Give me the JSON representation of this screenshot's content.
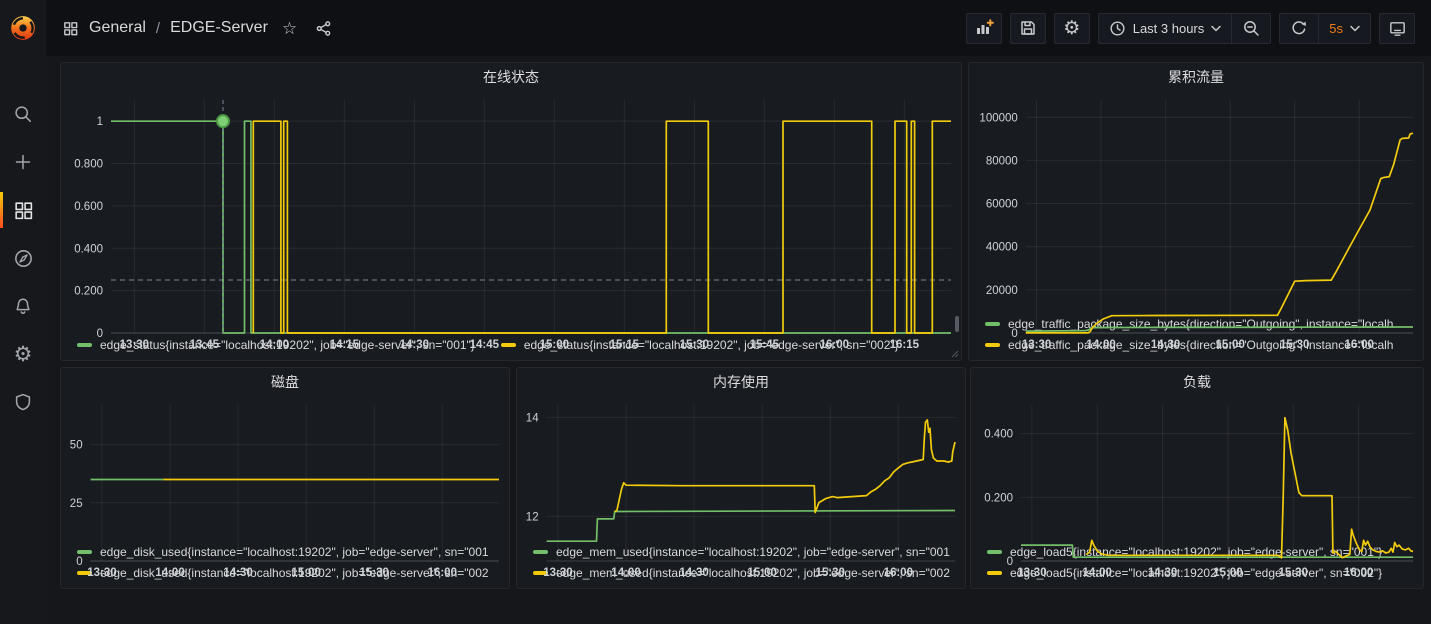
{
  "breadcrumb": {
    "section": "General",
    "separator": "/",
    "title": "EDGE-Server"
  },
  "toolbar": {
    "time_range": "Last 3 hours",
    "refresh_interval": "5s"
  },
  "icons": {
    "gear": "⚙",
    "star": "☆"
  },
  "colors": {
    "green": "#73bf69",
    "yellow": "#f2cc0c",
    "accent_orange": "#ff7e27",
    "crosshair": "#7b8699"
  },
  "sidebar": {
    "items": [
      "search",
      "create",
      "dashboards",
      "explore",
      "alerting",
      "configuration",
      "server-admin"
    ],
    "active_item": "dashboards"
  },
  "chart_data": [
    {
      "title": "在线状态",
      "type": "step-line",
      "x_unit": "minutes since 13:25",
      "x_domain": [
        0,
        180
      ],
      "x_ticks": [
        [
          5,
          "13:30"
        ],
        [
          20,
          "13:45"
        ],
        [
          35,
          "14:00"
        ],
        [
          50,
          "14:15"
        ],
        [
          65,
          "14:30"
        ],
        [
          80,
          "14:45"
        ],
        [
          95,
          "15:00"
        ],
        [
          110,
          "15:15"
        ],
        [
          125,
          "15:30"
        ],
        [
          140,
          "15:45"
        ],
        [
          155,
          "16:00"
        ],
        [
          170,
          "16:15"
        ]
      ],
      "y_domain": [
        0,
        1.1
      ],
      "y_ticks": [
        [
          0,
          "0"
        ],
        [
          0.2,
          "0.200"
        ],
        [
          0.4,
          "0.400"
        ],
        [
          0.6,
          "0.600"
        ],
        [
          0.8,
          "0.800"
        ],
        [
          1,
          "1"
        ]
      ],
      "threshold": 0.25,
      "annotation": {
        "t": 24,
        "v": 1
      },
      "legend_layout": "row",
      "series": [
        {
          "name": "edge_status{instance=\"localhost:19202\", job=\"edge-server\", sn=\"001\"}",
          "color": "#73bf69",
          "points": [
            [
              0,
              1
            ],
            [
              24,
              1
            ],
            [
              24,
              0
            ],
            [
              28.6,
              0
            ],
            [
              28.6,
              1
            ],
            [
              30,
              1
            ],
            [
              30,
              0
            ],
            [
              180,
              0
            ]
          ]
        },
        {
          "name": "edge_status{instance=\"localhost:19202\", job=\"edge-server\", sn=\"002\"}",
          "color": "#f2cc0c",
          "points": [
            [
              30.5,
              0
            ],
            [
              30.5,
              1
            ],
            [
              36.4,
              1
            ],
            [
              36.4,
              0
            ],
            [
              37,
              0
            ],
            [
              37,
              1
            ],
            [
              37.8,
              1
            ],
            [
              37.8,
              0
            ],
            [
              119,
              0
            ],
            [
              119,
              1
            ],
            [
              128,
              1
            ],
            [
              128,
              0
            ],
            [
              144,
              0
            ],
            [
              144,
              1
            ],
            [
              163,
              1
            ],
            [
              163,
              0
            ],
            [
              168,
              0
            ],
            [
              168,
              1
            ],
            [
              170.5,
              1
            ],
            [
              170.5,
              0
            ],
            [
              171.5,
              0
            ],
            [
              171.5,
              1
            ],
            [
              172.2,
              1
            ],
            [
              172.2,
              0
            ],
            [
              176,
              0
            ],
            [
              176,
              1
            ],
            [
              180,
              1
            ]
          ]
        }
      ]
    },
    {
      "title": "累积流量",
      "type": "line",
      "x_unit": "minutes since 13:25",
      "x_domain": [
        0,
        180
      ],
      "x_ticks": [
        [
          5,
          "13:30"
        ],
        [
          35,
          "14:00"
        ],
        [
          65,
          "14:30"
        ],
        [
          95,
          "15:00"
        ],
        [
          125,
          "15:30"
        ],
        [
          155,
          "16:00"
        ]
      ],
      "y_domain": [
        0,
        108000
      ],
      "y_ticks": [
        [
          0,
          "0"
        ],
        [
          20000,
          "20000"
        ],
        [
          40000,
          "40000"
        ],
        [
          60000,
          "60000"
        ],
        [
          80000,
          "80000"
        ],
        [
          100000,
          "100000"
        ]
      ],
      "legend_layout": "stack",
      "series": [
        {
          "name": "edge_traffic_package_size_bytes{direction=\"Outgoing\", instance=\"localh",
          "color": "#73bf69",
          "points": [
            [
              0,
              900
            ],
            [
              28,
              1100
            ],
            [
              29,
              1400
            ],
            [
              31,
              2500
            ],
            [
              60,
              2600
            ],
            [
              120,
              2700
            ],
            [
              180,
              2800
            ]
          ]
        },
        {
          "name": "edge_traffic_package_size_bytes{direction=\"Outgoing\", instance=\"localh",
          "color": "#f2cc0c",
          "points": [
            [
              0,
              50
            ],
            [
              29,
              50
            ],
            [
              30,
              800
            ],
            [
              31,
              2500
            ],
            [
              33,
              4500
            ],
            [
              36,
              6500
            ],
            [
              40,
              8000
            ],
            [
              60,
              8100
            ],
            [
              117,
              8200
            ],
            [
              119,
              12000
            ],
            [
              123,
              20000
            ],
            [
              125,
              24000
            ],
            [
              130,
              24300
            ],
            [
              142,
              24500
            ],
            [
              144,
              28000
            ],
            [
              150,
              39000
            ],
            [
              155,
              48000
            ],
            [
              160,
              57000
            ],
            [
              165,
              71500
            ],
            [
              166,
              72000
            ],
            [
              169,
              72500
            ],
            [
              171,
              78000
            ],
            [
              174,
              89500
            ],
            [
              175,
              90200
            ],
            [
              178,
              90400
            ],
            [
              178.6,
              92200
            ],
            [
              180,
              92600
            ]
          ]
        }
      ]
    },
    {
      "title": "磁盘",
      "type": "line",
      "x_unit": "minutes since 13:25",
      "x_domain": [
        0,
        180
      ],
      "x_ticks": [
        [
          5,
          "13:30"
        ],
        [
          35,
          "14:00"
        ],
        [
          65,
          "14:30"
        ],
        [
          95,
          "15:00"
        ],
        [
          125,
          "15:30"
        ],
        [
          155,
          "16:00"
        ]
      ],
      "y_domain": [
        0,
        67
      ],
      "y_ticks": [
        [
          0,
          "0"
        ],
        [
          25,
          "25"
        ],
        [
          50,
          "50"
        ]
      ],
      "legend_layout": "stack",
      "series": [
        {
          "name": "edge_disk_used{instance=\"localhost:19202\", job=\"edge-server\", sn=\"001",
          "color": "#73bf69",
          "points": [
            [
              0,
              35
            ],
            [
              32,
              35
            ]
          ]
        },
        {
          "name": "edge_disk_used{instance=\"localhost:19202\", job=\"edge-server\", sn=\"002",
          "color": "#f2cc0c",
          "points": [
            [
              32,
              35
            ],
            [
              180,
              35
            ]
          ]
        }
      ]
    },
    {
      "title": "内存使用",
      "type": "line",
      "x_unit": "minutes since 13:25",
      "x_domain": [
        0,
        180
      ],
      "x_ticks": [
        [
          5,
          "13:30"
        ],
        [
          35,
          "14:00"
        ],
        [
          65,
          "14:30"
        ],
        [
          95,
          "15:00"
        ],
        [
          125,
          "15:30"
        ],
        [
          155,
          "16:00"
        ]
      ],
      "y_domain": [
        11.1,
        14.25
      ],
      "y_ticks": [
        [
          12,
          "12"
        ],
        [
          14,
          "14"
        ]
      ],
      "legend_layout": "stack",
      "series": [
        {
          "name": "edge_mem_used{instance=\"localhost:19202\", job=\"edge-server\", sn=\"001",
          "color": "#73bf69",
          "points": [
            [
              0,
              11.5
            ],
            [
              22,
              11.5
            ],
            [
              22.4,
              11.95
            ],
            [
              29.6,
              11.95
            ],
            [
              30,
              12.1
            ],
            [
              180,
              12.12
            ]
          ]
        },
        {
          "name": "edge_mem_used{instance=\"localhost:19202\", job=\"edge-server\", sn=\"002",
          "color": "#f2cc0c",
          "points": [
            [
              30,
              12.1
            ],
            [
              31,
              12.12
            ],
            [
              33,
              12.55
            ],
            [
              34,
              12.68
            ],
            [
              35,
              12.63
            ],
            [
              60,
              12.62
            ],
            [
              118,
              12.62
            ],
            [
              118.4,
              12.08
            ],
            [
              120,
              12.28
            ],
            [
              123,
              12.36
            ],
            [
              126,
              12.4
            ],
            [
              128,
              12.38
            ],
            [
              141,
              12.42
            ],
            [
              143,
              12.5
            ],
            [
              145,
              12.55
            ],
            [
              147,
              12.62
            ],
            [
              149,
              12.72
            ],
            [
              151,
              12.78
            ],
            [
              153,
              12.9
            ],
            [
              155,
              12.98
            ],
            [
              157,
              13.05
            ],
            [
              159,
              13.08
            ],
            [
              161,
              13.1
            ],
            [
              164,
              13.13
            ],
            [
              166,
              13.15
            ],
            [
              166.5,
              13.6
            ],
            [
              167,
              13.9
            ],
            [
              167.8,
              13.95
            ],
            [
              168.4,
              13.7
            ],
            [
              169,
              13.78
            ],
            [
              169.6,
              13.35
            ],
            [
              170.5,
              13.18
            ],
            [
              172,
              13.12
            ],
            [
              175,
              13.12
            ],
            [
              177,
              13.1
            ],
            [
              178.6,
              13.12
            ],
            [
              179,
              13.3
            ],
            [
              180,
              13.5
            ]
          ]
        }
      ]
    },
    {
      "title": "负载",
      "type": "line",
      "x_unit": "minutes since 13:25",
      "x_domain": [
        0,
        180
      ],
      "x_ticks": [
        [
          5,
          "13:30"
        ],
        [
          35,
          "14:00"
        ],
        [
          65,
          "14:30"
        ],
        [
          95,
          "15:00"
        ],
        [
          125,
          "15:30"
        ],
        [
          155,
          "16:00"
        ]
      ],
      "y_domain": [
        0,
        0.49
      ],
      "y_ticks": [
        [
          0,
          "0"
        ],
        [
          0.2,
          "0.200"
        ],
        [
          0.4,
          "0.400"
        ]
      ],
      "legend_layout": "stack",
      "series": [
        {
          "name": "edge_load5{instance=\"localhost:19202\", job=\"edge-server\", sn=\"001\"}",
          "color": "#73bf69",
          "points": [
            [
              0,
              0.05
            ],
            [
              23.6,
              0.05
            ],
            [
              24,
              0.012
            ],
            [
              180,
              0.012
            ]
          ]
        },
        {
          "name": "edge_load5{instance=\"localhost:19202\", job=\"edge-server\", sn=\"002\"}",
          "color": "#f2cc0c",
          "points": [
            [
              30,
              0.02
            ],
            [
              31.5,
              0.028
            ],
            [
              32.5,
              0.065
            ],
            [
              33.5,
              0.048
            ],
            [
              35,
              0.032
            ],
            [
              37,
              0.022
            ],
            [
              40,
              0.018
            ],
            [
              118,
              0.018
            ],
            [
              119.6,
              0.01
            ],
            [
              120.4,
              0.2
            ],
            [
              121.2,
              0.45
            ],
            [
              122.5,
              0.41
            ],
            [
              124,
              0.34
            ],
            [
              126,
              0.27
            ],
            [
              127.6,
              0.215
            ],
            [
              129,
              0.205
            ],
            [
              142.8,
              0.205
            ],
            [
              143.2,
              0.025
            ],
            [
              144.5,
              0.03
            ],
            [
              146,
              0.02
            ],
            [
              147.6,
              0.01
            ],
            [
              149,
              0.015
            ],
            [
              151,
              0.02
            ],
            [
              151.8,
              0.1
            ],
            [
              152.6,
              0.08
            ],
            [
              154,
              0.055
            ],
            [
              155.5,
              0.035
            ],
            [
              156.5,
              0.03
            ],
            [
              157.3,
              0.065
            ],
            [
              158.2,
              0.05
            ],
            [
              159.2,
              0.062
            ],
            [
              160.2,
              0.045
            ],
            [
              161.5,
              0.035
            ],
            [
              163,
              0.03
            ],
            [
              164.5,
              0.028
            ],
            [
              166,
              0.032
            ],
            [
              167.5,
              0.025
            ],
            [
              169,
              0.028
            ],
            [
              170,
              0.04
            ],
            [
              170.8,
              0.028
            ],
            [
              171.6,
              0.058
            ],
            [
              172.6,
              0.045
            ],
            [
              173.6,
              0.05
            ],
            [
              175,
              0.038
            ],
            [
              176.5,
              0.035
            ],
            [
              178,
              0.04
            ],
            [
              179,
              0.032
            ],
            [
              180,
              0.03
            ]
          ]
        }
      ]
    }
  ]
}
